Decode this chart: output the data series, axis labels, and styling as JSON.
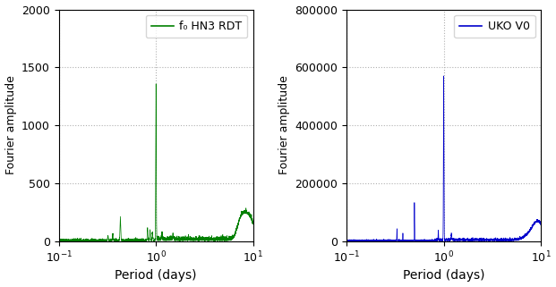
{
  "left_label": "f₀ HN3 RDT",
  "right_label": "UKO V0",
  "left_color": "#008000",
  "right_color": "#0000cc",
  "ylabel": "Fourier amplitude",
  "xlabel": "Period (days)",
  "xlim": [
    0.1,
    10
  ],
  "left_ylim": [
    0,
    2000
  ],
  "right_ylim": [
    0,
    800000
  ],
  "left_yticks": [
    0,
    500,
    1000,
    1500,
    2000
  ],
  "right_yticks": [
    0,
    200000,
    400000,
    600000,
    800000
  ],
  "grid_color": "#b0b0b0",
  "grid_style": "dotted",
  "figsize": [
    6.21,
    3.21
  ],
  "dpi": 100
}
